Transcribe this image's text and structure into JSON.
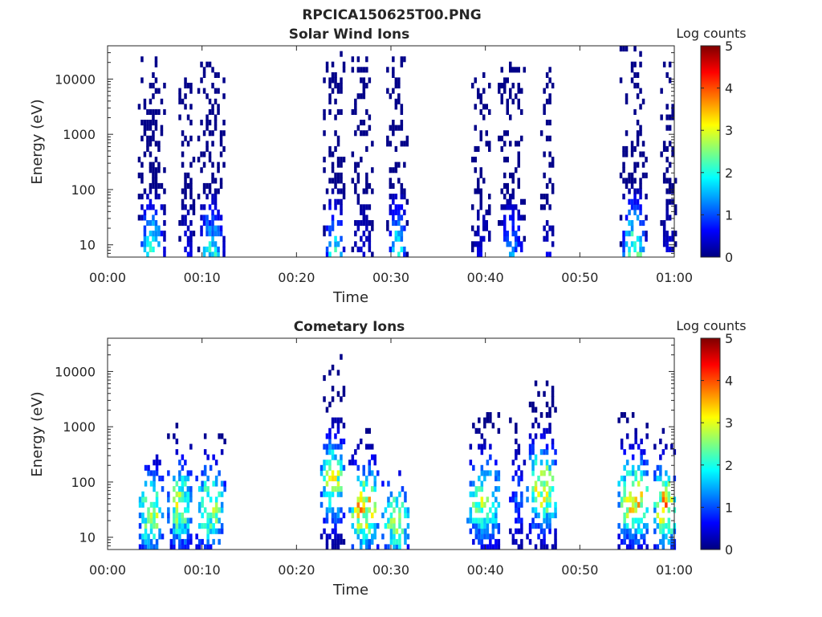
{
  "figure_title": "RPCICA150625T00.PNG",
  "colormap": [
    "#00007f",
    "#0000ff",
    "#007fff",
    "#00ffff",
    "#7fff7f",
    "#ffff00",
    "#ff7f00",
    "#ff0000",
    "#7f0000"
  ],
  "chart_data": [
    {
      "type": "heatmap",
      "title": "Solar Wind Ions",
      "xlabel": "Time",
      "ylabel": "Energy (eV)",
      "x_ticks": [
        "00:00",
        "00:10",
        "00:20",
        "00:30",
        "00:40",
        "00:50",
        "01:00"
      ],
      "x_range_minutes": [
        0,
        60
      ],
      "y_scale": "log",
      "y_range": [
        6,
        40000
      ],
      "y_ticks": [
        10,
        100,
        1000,
        10000
      ],
      "y_tick_labels": [
        "10",
        "100",
        "1000",
        "10000"
      ],
      "colorbar": {
        "label": "Log counts",
        "range": [
          0,
          5
        ],
        "ticks": [
          "0",
          "1",
          "2",
          "3",
          "4",
          "5"
        ]
      },
      "bursts": [
        {
          "t_start": 3.2,
          "t_end": 6.0,
          "e_max": 25000,
          "peak_level": 2.8
        },
        {
          "t_start": 7.5,
          "t_end": 9.0,
          "e_max": 12000,
          "peak_level": 0.8
        },
        {
          "t_start": 9.5,
          "t_end": 12.3,
          "e_max": 22000,
          "peak_level": 2.5
        },
        {
          "t_start": 22.8,
          "t_end": 25.0,
          "e_max": 30000,
          "peak_level": 2.3
        },
        {
          "t_start": 25.8,
          "t_end": 28.0,
          "e_max": 25000,
          "peak_level": 0.6
        },
        {
          "t_start": 29.5,
          "t_end": 31.6,
          "e_max": 28000,
          "peak_level": 2.5
        },
        {
          "t_start": 38.5,
          "t_end": 40.5,
          "e_max": 13000,
          "peak_level": 0.6
        },
        {
          "t_start": 41.3,
          "t_end": 44.0,
          "e_max": 22000,
          "peak_level": 1.6
        },
        {
          "t_start": 45.8,
          "t_end": 47.2,
          "e_max": 17000,
          "peak_level": 0.6
        },
        {
          "t_start": 54.2,
          "t_end": 57.0,
          "e_max": 38000,
          "peak_level": 3.2
        },
        {
          "t_start": 58.5,
          "t_end": 60.0,
          "e_max": 20000,
          "peak_level": 0.6
        }
      ]
    },
    {
      "type": "heatmap",
      "title": "Cometary Ions",
      "xlabel": "Time",
      "ylabel": "Energy (eV)",
      "x_ticks": [
        "00:00",
        "00:10",
        "00:20",
        "00:30",
        "00:40",
        "00:50",
        "01:00"
      ],
      "x_range_minutes": [
        0,
        60
      ],
      "y_scale": "log",
      "y_range": [
        6,
        40000
      ],
      "y_ticks": [
        10,
        100,
        1000,
        10000
      ],
      "y_tick_labels": [
        "10",
        "100",
        "1000",
        "10000"
      ],
      "colorbar": {
        "label": "Log counts",
        "range": [
          0,
          5
        ],
        "ticks": [
          "0",
          "1",
          "2",
          "3",
          "4",
          "5"
        ]
      },
      "bursts": [
        {
          "t_start": 3.3,
          "t_end": 5.8,
          "e_max": 500,
          "peak_level": 3.3
        },
        {
          "t_start": 6.3,
          "t_end": 8.8,
          "e_max": 1200,
          "peak_level": 3.1
        },
        {
          "t_start": 9.3,
          "t_end": 12.3,
          "e_max": 1000,
          "peak_level": 3.0
        },
        {
          "t_start": 22.5,
          "t_end": 25.0,
          "e_max": 22000,
          "peak_level": 3.2
        },
        {
          "t_start": 25.5,
          "t_end": 28.5,
          "e_max": 900,
          "peak_level": 3.8
        },
        {
          "t_start": 29.0,
          "t_end": 31.7,
          "e_max": 200,
          "peak_level": 2.9
        },
        {
          "t_start": 38.0,
          "t_end": 41.5,
          "e_max": 2000,
          "peak_level": 3.0
        },
        {
          "t_start": 42.5,
          "t_end": 44.0,
          "e_max": 3000,
          "peak_level": 1.2
        },
        {
          "t_start": 44.3,
          "t_end": 47.5,
          "e_max": 9000,
          "peak_level": 3.4
        },
        {
          "t_start": 54.0,
          "t_end": 57.2,
          "e_max": 2500,
          "peak_level": 3.7
        },
        {
          "t_start": 57.8,
          "t_end": 60.0,
          "e_max": 1000,
          "peak_level": 3.8
        }
      ]
    }
  ]
}
